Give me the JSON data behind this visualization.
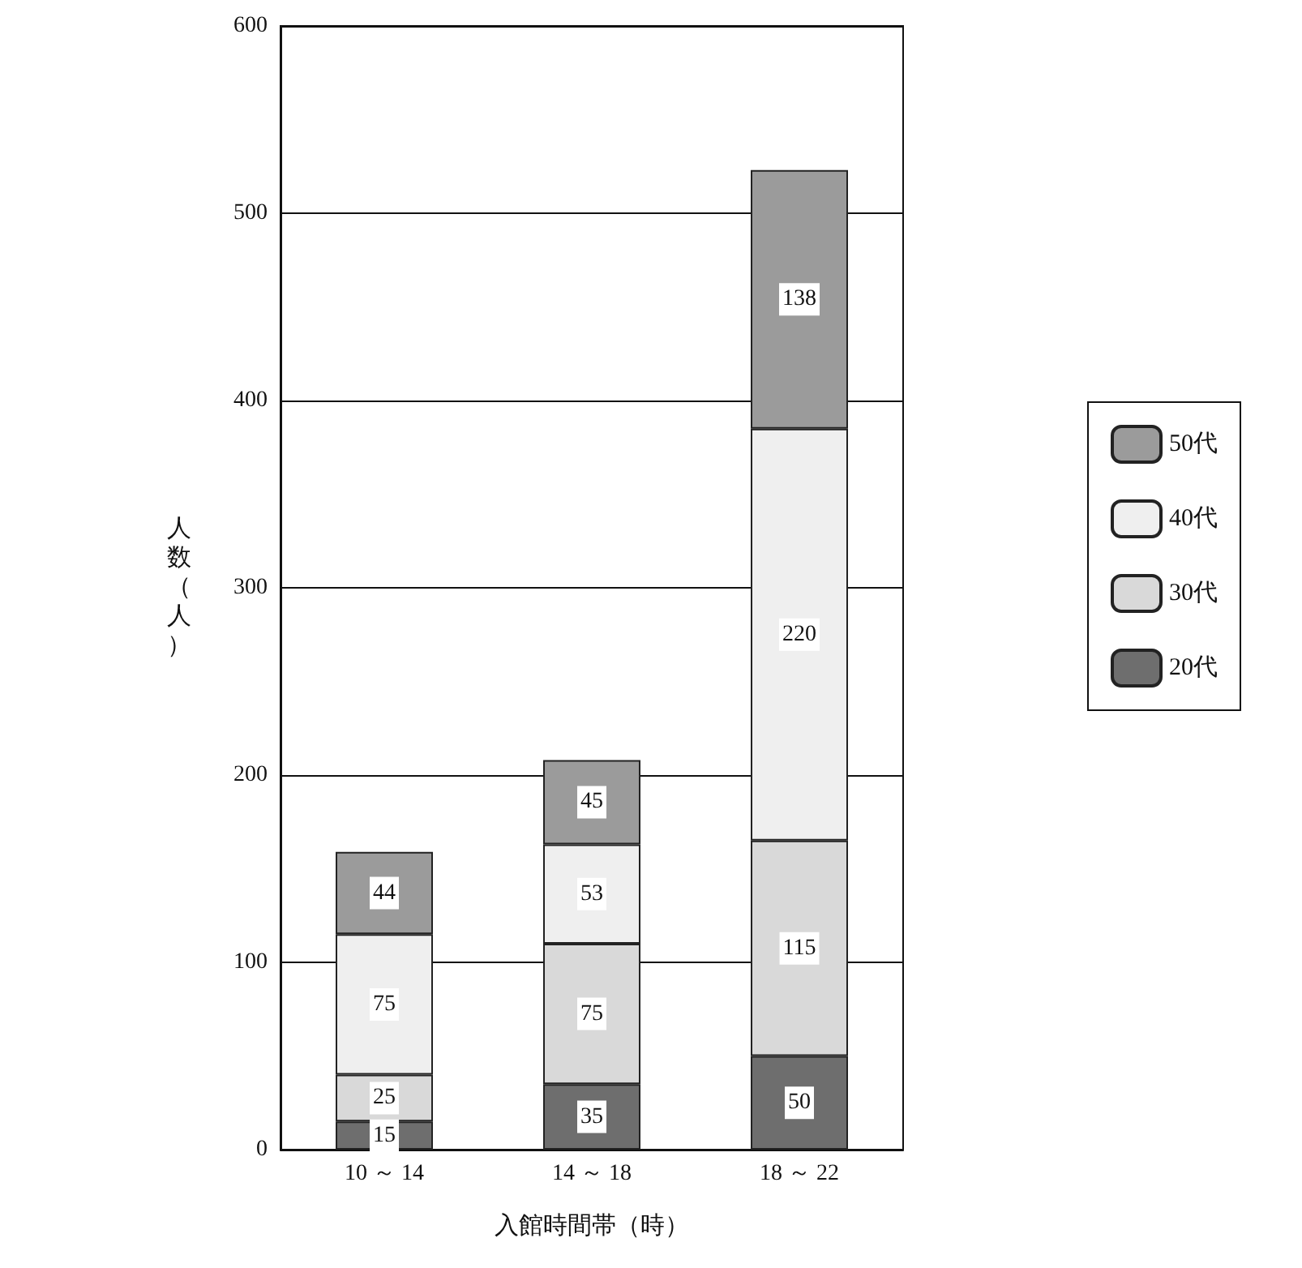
{
  "chart_data": {
    "type": "bar",
    "stacked": true,
    "xlabel": "入館時間帯（時）",
    "ylabel": "人数（人）",
    "categories": [
      "10 ～ 14",
      "14 ～ 18",
      "18 ～ 22"
    ],
    "series": [
      {
        "name": "20代",
        "color": "#6e6e6e",
        "values": [
          15,
          35,
          50
        ]
      },
      {
        "name": "30代",
        "color": "#d9d9d9",
        "values": [
          25,
          75,
          115
        ]
      },
      {
        "name": "40代",
        "color": "#efefef",
        "values": [
          75,
          53,
          220
        ]
      },
      {
        "name": "50代",
        "color": "#9b9b9b",
        "values": [
          44,
          45,
          138
        ]
      }
    ],
    "ylim": [
      0,
      600
    ],
    "yticks": [
      0,
      100,
      200,
      300,
      400,
      500,
      600
    ],
    "grid": "y",
    "legend": "right",
    "data_labels": true
  }
}
